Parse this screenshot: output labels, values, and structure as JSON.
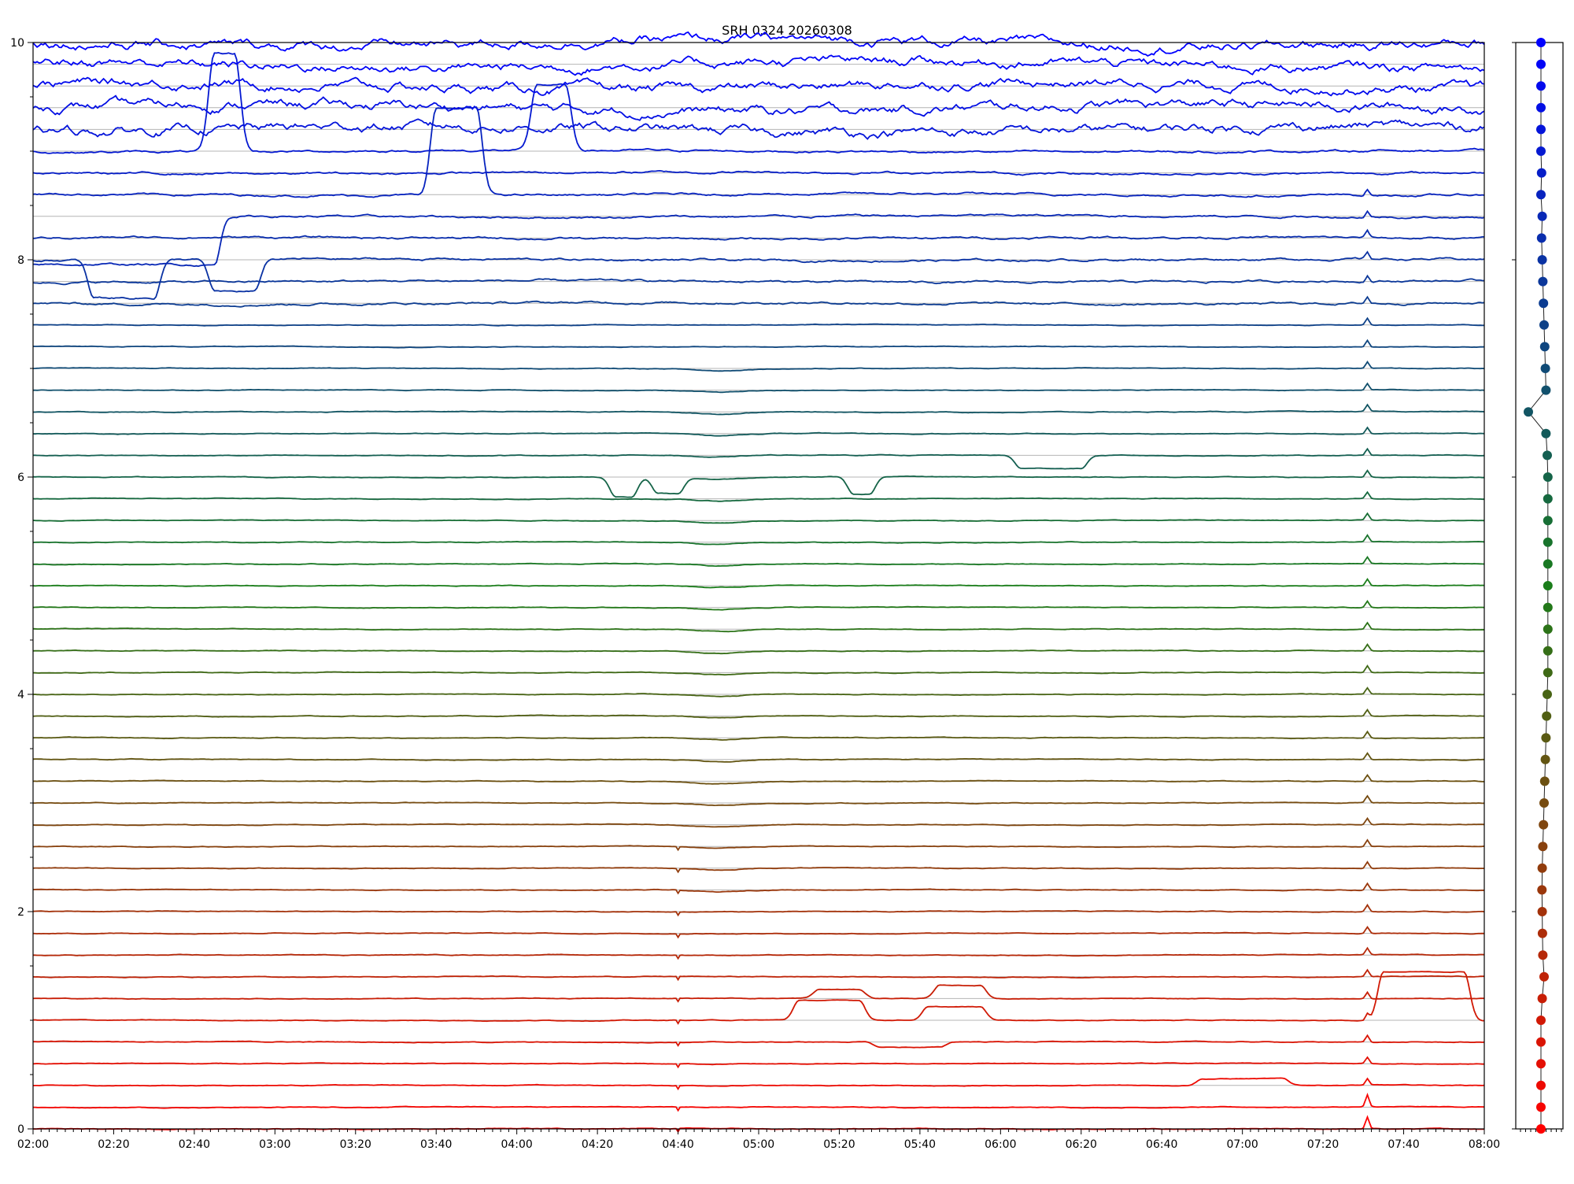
{
  "chart_data": {
    "type": "line",
    "title": "SRH 0324 20260308",
    "xlabel": "",
    "ylabel": "",
    "x_range": [
      "02:00",
      "08:00"
    ],
    "ylim": [
      0,
      10
    ],
    "x_ticks": [
      "02:00",
      "02:20",
      "02:40",
      "03:00",
      "03:20",
      "03:40",
      "04:00",
      "04:20",
      "04:40",
      "05:00",
      "05:20",
      "05:40",
      "06:00",
      "06:20",
      "06:40",
      "07:00",
      "07:20",
      "07:40",
      "08:00"
    ],
    "y_ticks": [
      "0",
      "2",
      "4",
      "6",
      "8",
      "10"
    ],
    "grid": "horizontal lines at each trace baseline",
    "legend": "none",
    "n_traces": 51,
    "trace_spacing": 0.2,
    "color_gradient": [
      "#ff0000",
      "#1a7d1a",
      "#0000ff"
    ],
    "grid_color": "#b4b4b4",
    "common_features": [
      {
        "time": "07:31",
        "description": "small spike on all lower and middle traces"
      },
      {
        "time": "04:40",
        "description": "small step / glitch on lower traces"
      }
    ],
    "events": [
      {
        "trace": 2,
        "start": "06:50",
        "end": "07:10",
        "amplitude": 0.06
      },
      {
        "trace": 4,
        "start": "05:30",
        "end": "05:45",
        "amplitude": -0.05
      },
      {
        "trace": 5,
        "start": "05:10",
        "end": "05:25",
        "amplitude": 0.18
      },
      {
        "trace": 5,
        "start": "05:42",
        "end": "05:55",
        "amplitude": 0.12
      },
      {
        "trace": 5,
        "start": "07:35",
        "end": "07:55",
        "amplitude": 0.45
      },
      {
        "trace": 6,
        "start": "05:15",
        "end": "05:25",
        "amplitude": 0.08
      },
      {
        "trace": 6,
        "start": "05:45",
        "end": "05:55",
        "amplitude": 0.12
      },
      {
        "trace": 30,
        "start": "04:25",
        "end": "04:28",
        "amplitude": -0.18
      },
      {
        "trace": 30,
        "start": "04:35",
        "end": "04:40",
        "amplitude": -0.15
      },
      {
        "trace": 30,
        "start": "05:24",
        "end": "05:27",
        "amplitude": -0.16
      },
      {
        "trace": 31,
        "start": "06:05",
        "end": "06:20",
        "amplitude": -0.12
      },
      {
        "trace": 40,
        "start": "02:15",
        "end": "02:30",
        "amplitude": -0.35
      },
      {
        "trace": 40,
        "start": "02:45",
        "end": "02:55",
        "amplitude": -0.3
      },
      {
        "trace": 42,
        "start": "02:00",
        "end": "02:45",
        "amplitude": -0.45
      },
      {
        "trace": 43,
        "start": "03:40",
        "end": "03:50",
        "amplitude": 0.8
      },
      {
        "trace": 45,
        "start": "02:45",
        "end": "02:50",
        "amplitude": 0.9
      },
      {
        "trace": 45,
        "start": "04:05",
        "end": "04:12",
        "amplitude": 0.6
      }
    ],
    "side_panel": {
      "type": "scatter",
      "description": "per-trace marker column, one dot per trace baseline",
      "marker_offsets": [
        0,
        0,
        0,
        0,
        0,
        0,
        0.1,
        0.25,
        0.15,
        0.12,
        0.1,
        0.08,
        0.1,
        0.15,
        0.2,
        0.25,
        0.3,
        0.35,
        0.4,
        0.45,
        0.5,
        0.55,
        0.55,
        0.55,
        0.55,
        0.55,
        0.55,
        0.55,
        0.55,
        0.55,
        0.55,
        0.5,
        0.4,
        -1.0,
        0.4,
        0.35,
        0.3,
        0.25,
        0.2,
        0.15,
        0.1,
        0.05,
        0.1,
        0.0,
        0.05,
        0.0,
        0.0,
        0.0,
        0.0,
        0.0,
        0.0
      ]
    }
  }
}
